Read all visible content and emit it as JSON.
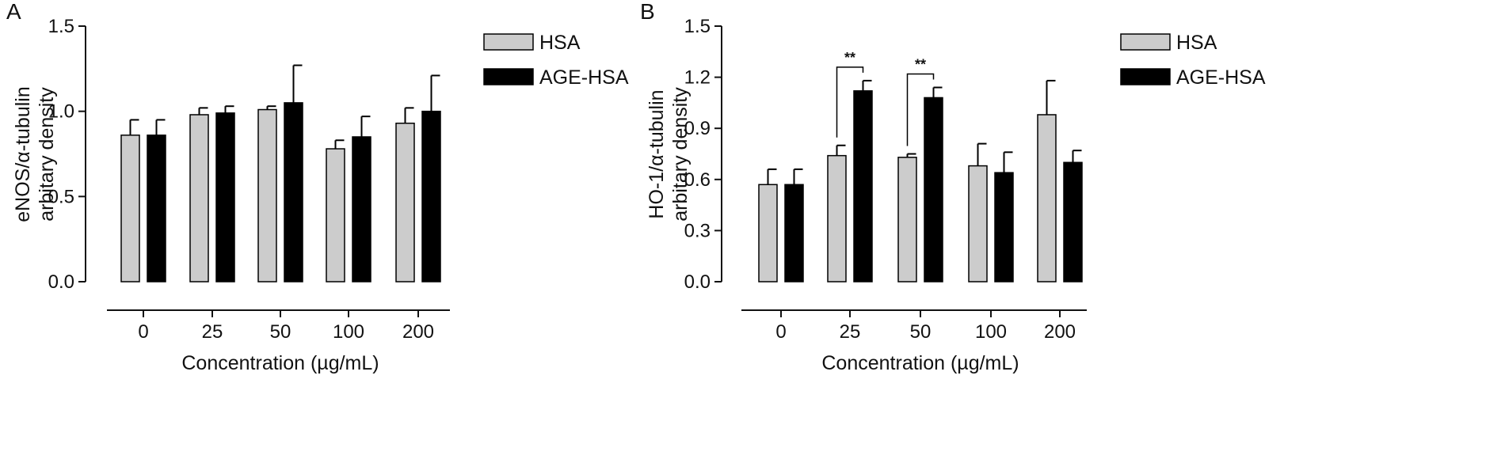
{
  "colors": {
    "HSA": "#cccccc",
    "AGE-HSA": "#000000",
    "axis": "#111111"
  },
  "chart_data": [
    {
      "type": "bar",
      "panel_label": "A",
      "categories": [
        "0",
        "25",
        "50",
        "100",
        "200"
      ],
      "xlabel": "Concentration (µg/mL)",
      "ylabel_lines": [
        "eNOS/α-tubulin",
        "arbitary density"
      ],
      "ylim": [
        0,
        1.5
      ],
      "yticks": [
        "0.0",
        "0.5",
        "1.0",
        "1.5"
      ],
      "grid": false,
      "legend_position": "top-right",
      "series": [
        {
          "name": "HSA",
          "values": [
            0.86,
            0.98,
            1.01,
            0.78,
            0.93
          ],
          "errors": [
            0.09,
            0.04,
            0.02,
            0.05,
            0.09
          ]
        },
        {
          "name": "AGE-HSA",
          "values": [
            0.86,
            0.99,
            1.05,
            0.85,
            1.0
          ],
          "errors": [
            0.09,
            0.04,
            0.22,
            0.12,
            0.21
          ]
        }
      ],
      "annotations": []
    },
    {
      "type": "bar",
      "panel_label": "B",
      "categories": [
        "0",
        "25",
        "50",
        "100",
        "200"
      ],
      "xlabel": "Concentration  (µg/mL)",
      "ylabel_lines": [
        "HO-1/α-tubulin",
        "arbitary density"
      ],
      "ylim": [
        0,
        1.5
      ],
      "yticks": [
        "0.0",
        "0.3",
        "0.6",
        "0.9",
        "1.2",
        "1.5"
      ],
      "grid": false,
      "legend_position": "top-right",
      "series": [
        {
          "name": "HSA",
          "values": [
            0.57,
            0.74,
            0.73,
            0.68,
            0.98
          ],
          "errors": [
            0.09,
            0.06,
            0.02,
            0.13,
            0.2
          ]
        },
        {
          "name": "AGE-HSA",
          "values": [
            0.57,
            1.12,
            1.08,
            0.64,
            0.7
          ],
          "errors": [
            0.09,
            0.06,
            0.06,
            0.12,
            0.07
          ]
        }
      ],
      "annotations": [
        {
          "text": "**",
          "category_index": 1
        },
        {
          "text": "**",
          "category_index": 2
        }
      ]
    }
  ]
}
